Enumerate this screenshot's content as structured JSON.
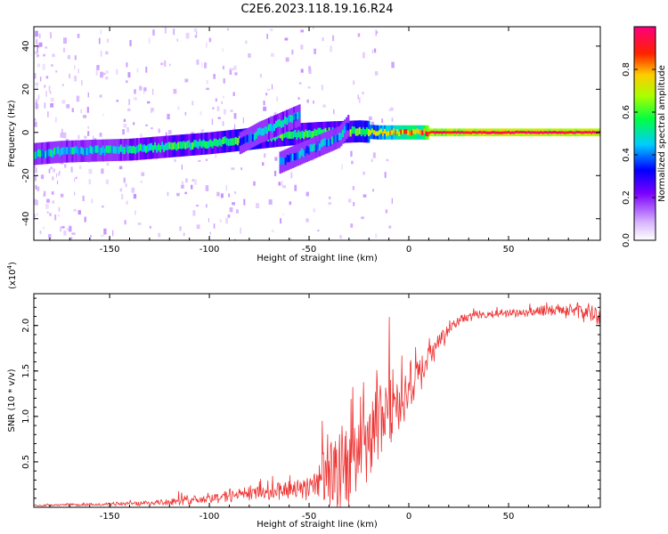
{
  "figure": {
    "title": "C2E6.2023.118.19.16.R24"
  },
  "chart_data": [
    {
      "type": "heatmap",
      "name": "spectrogram",
      "title": "C2E6.2023.118.19.16.R24",
      "xlabel": "Height of straight line (km)",
      "ylabel": "Frequency (Hz)",
      "xlim": [
        -188,
        96
      ],
      "ylim": [
        -50,
        49
      ],
      "xticks": [
        "-150",
        "-100",
        "-50",
        "0",
        "50"
      ],
      "xtick_values": [
        -150,
        -100,
        -50,
        0,
        50
      ],
      "yticks": [
        "-40",
        "-20",
        "0",
        "20",
        "40"
      ],
      "ytick_values": [
        -40,
        -20,
        0,
        20,
        40
      ],
      "colorbar": {
        "label": "Normalized spectral amplitude",
        "ticks": [
          "0.0",
          "0.2",
          "0.4",
          "0.6",
          "0.8"
        ],
        "tick_values": [
          0.0,
          0.2,
          0.4,
          0.6,
          0.8
        ],
        "range": [
          0.0,
          1.0
        ]
      },
      "traces": [
        {
          "name": "main-echo",
          "x": [
            -188,
            -175,
            -160,
            -140,
            -120,
            -100,
            -80,
            -60,
            -40,
            -25,
            -15,
            -5,
            0,
            5,
            10,
            20,
            40,
            60,
            80,
            96
          ],
          "y": [
            -10,
            -9,
            -8.5,
            -8,
            -6.5,
            -5,
            -3,
            -1,
            0,
            0.5,
            0,
            0,
            0,
            0,
            0,
            0,
            0,
            0,
            0,
            0
          ],
          "amplitude": [
            0.45,
            0.5,
            0.45,
            0.5,
            0.55,
            0.55,
            0.6,
            0.55,
            0.55,
            0.6,
            0.7,
            0.8,
            0.85,
            0.8,
            0.95,
            0.98,
            1.0,
            1.0,
            1.0,
            1.0
          ]
        },
        {
          "name": "upper-branch",
          "x": [
            -85,
            -75,
            -65,
            -55
          ],
          "y": [
            -5,
            0,
            4,
            8
          ],
          "amplitude": [
            0.35,
            0.45,
            0.5,
            0.45
          ]
        },
        {
          "name": "lower-branch",
          "x": [
            -65,
            -55,
            -45,
            -35,
            -30
          ],
          "y": [
            -14,
            -10,
            -6,
            -2,
            4
          ],
          "amplitude": [
            0.35,
            0.4,
            0.45,
            0.45,
            0.4
          ]
        }
      ]
    },
    {
      "type": "line",
      "name": "snr",
      "xlabel": "Height of straight line (km)",
      "ylabel": "SNR (10 * v/v)",
      "y_multiplier": "(x10",
      "y_multiplier_exp": "4",
      "y_multiplier_close": ")",
      "xlim": [
        -188,
        96
      ],
      "ylim": [
        0,
        2.35
      ],
      "xticks": [
        "-150",
        "-100",
        "-50",
        "0",
        "50"
      ],
      "xtick_values": [
        -150,
        -100,
        -50,
        0,
        50
      ],
      "yticks": [
        "0.5",
        "1.0",
        "1.5",
        "2.0"
      ],
      "ytick_values": [
        0.5,
        1.0,
        1.5,
        2.0
      ],
      "color": "#ee3333",
      "envelope": {
        "x": [
          -188,
          -160,
          -140,
          -120,
          -100,
          -80,
          -60,
          -50,
          -40,
          -35,
          -30,
          -25,
          -20,
          -15,
          -10,
          -5,
          0,
          5,
          10,
          15,
          20,
          25,
          30,
          40,
          50,
          60,
          70,
          80,
          90,
          96
        ],
        "base": [
          0.02,
          0.03,
          0.04,
          0.06,
          0.1,
          0.15,
          0.2,
          0.25,
          0.32,
          0.4,
          0.5,
          0.6,
          0.75,
          0.9,
          1.05,
          1.2,
          1.32,
          1.45,
          1.6,
          1.8,
          1.95,
          2.05,
          2.1,
          2.12,
          2.14,
          2.15,
          2.16,
          2.16,
          2.15,
          2.1
        ],
        "amp": [
          0.01,
          0.02,
          0.03,
          0.05,
          0.08,
          0.1,
          0.15,
          0.18,
          0.45,
          0.6,
          0.55,
          0.55,
          0.55,
          0.6,
          0.55,
          0.45,
          0.35,
          0.3,
          0.25,
          0.15,
          0.1,
          0.07,
          0.06,
          0.05,
          0.05,
          0.06,
          0.08,
          0.1,
          0.12,
          0.15
        ]
      }
    }
  ]
}
